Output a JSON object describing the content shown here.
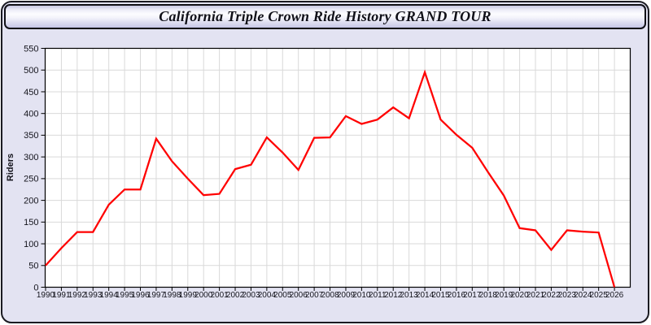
{
  "title": "California Triple Crown Ride History GRAND TOUR",
  "colors": {
    "page_background": "#ffffff",
    "frame_background": "#e3e3f2",
    "frame_border": "#1b1b22",
    "titlebar_top": "#c7c7e2",
    "titlebar_shine": "#fdfdff",
    "titlebar_bottom": "#c7c7e6",
    "plot_background": "#ffffff",
    "grid": "#d9d9d9",
    "axis": "#000000",
    "tick_label": "#14141c",
    "line": "#ff0000"
  },
  "chart_data": {
    "type": "line",
    "title": "California Triple Crown Ride History GRAND TOUR",
    "xlabel": "",
    "ylabel": "Riders",
    "ylim": [
      0,
      550
    ],
    "ytick_step": 50,
    "grid": true,
    "legend_position": "none",
    "x": [
      1990,
      1991,
      1992,
      1993,
      1994,
      1995,
      1996,
      1997,
      1998,
      1999,
      2000,
      2001,
      2002,
      2003,
      2004,
      2005,
      2006,
      2007,
      2008,
      2009,
      2010,
      2011,
      2012,
      2013,
      2014,
      2015,
      2016,
      2017,
      2018,
      2019,
      2020,
      2021,
      2022,
      2023,
      2024,
      2025,
      2026
    ],
    "series": [
      {
        "name": "Riders",
        "color": "#ff0000",
        "values": [
          50,
          90,
          127,
          127,
          190,
          225,
          225,
          342,
          290,
          250,
          212,
          215,
          272,
          282,
          345,
          310,
          270,
          344,
          345,
          394,
          376,
          386,
          414,
          389,
          495,
          386,
          351,
          321,
          265,
          211,
          136,
          131,
          86,
          131,
          128,
          126,
          0
        ]
      }
    ]
  }
}
